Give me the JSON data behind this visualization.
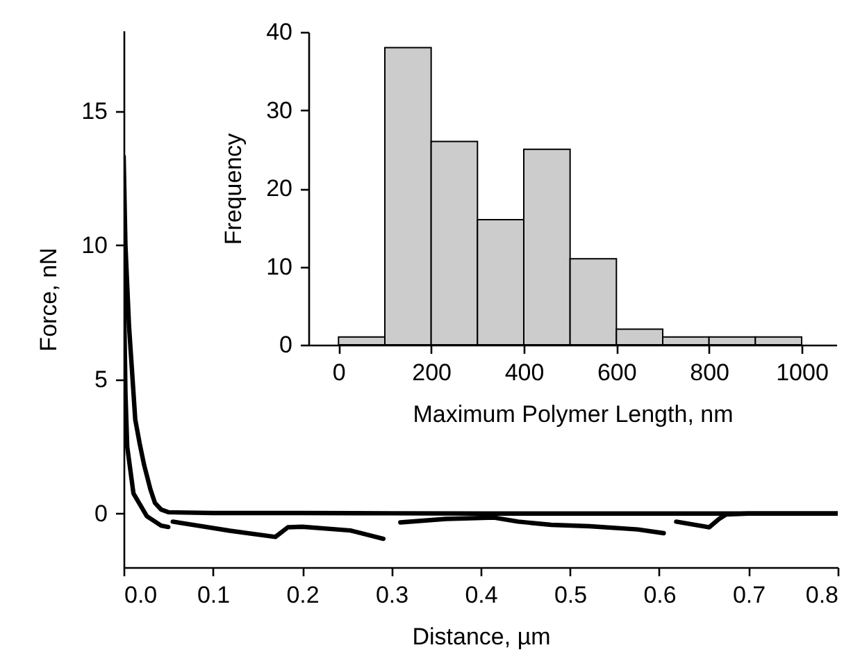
{
  "chart_data": [
    {
      "type": "line",
      "xlabel": "Distance, µm",
      "ylabel": "Force, nN",
      "xlim": [
        0,
        0.8
      ],
      "ylim": [
        -2,
        18
      ],
      "xticks": [
        {
          "value": 0,
          "label": "0.0"
        },
        0.1,
        0.2,
        0.3,
        0.4,
        0.5,
        0.6,
        0.7,
        0.8
      ],
      "yticks": [
        0,
        5,
        10,
        15
      ],
      "grid": false,
      "legend": false,
      "series": [
        {
          "color": "#000000",
          "x": [
            0,
            0.002,
            0.004,
            0.006,
            0.01,
            0.013,
            0.018,
            0.023,
            0.03,
            0.035,
            0.042,
            0.05,
            0.1,
            0.2,
            0.3,
            0.4,
            0.5,
            0.6,
            0.7,
            0.8
          ],
          "values": [
            13.3,
            10,
            8.5,
            7,
            5,
            3.5,
            2.6,
            1.8,
            0.9,
            0.4,
            0.15,
            0.05,
            0.02,
            0.02,
            0.01,
            0,
            0,
            0,
            0,
            0
          ]
        },
        {
          "color": "#000000",
          "x": [
            0,
            0.002,
            0.004,
            0.011,
            0.026,
            0.042,
            0.05,
            0.052,
            0.055,
            0.119,
            0.17,
            0.184,
            0.2,
            0.254,
            0.291,
            0.3,
            0.31,
            0.361,
            0.415,
            0.442,
            0.479,
            0.522,
            0.576,
            0.605,
            0.612,
            0.619,
            0.656,
            0.667,
            0.675,
            0.7,
            0.8
          ],
          "values": [
            9,
            4.5,
            2.5,
            0.75,
            -0.1,
            -0.45,
            -0.5,
            null,
            -0.3,
            -0.64,
            -0.87,
            -0.51,
            -0.49,
            -0.63,
            -0.94,
            null,
            -0.33,
            -0.2,
            -0.15,
            -0.3,
            -0.42,
            -0.47,
            -0.59,
            -0.73,
            null,
            -0.3,
            -0.51,
            -0.2,
            -0.03,
            0,
            0
          ]
        }
      ]
    },
    {
      "type": "histogram",
      "xlabel": "Maximum Polymer Length, nm",
      "ylabel": "Frequency",
      "xlim": [
        -65,
        1075
      ],
      "ylim": [
        0,
        40
      ],
      "xticks": [
        0,
        200,
        400,
        600,
        800,
        1000
      ],
      "yticks": [
        0,
        10,
        20,
        30,
        40
      ],
      "grid": false,
      "color": "#cccccc",
      "bins": [
        0,
        100,
        200,
        300,
        400,
        500,
        600,
        700,
        800,
        900,
        1000
      ],
      "values": [
        1,
        38,
        26,
        16,
        25,
        11,
        2,
        1,
        1,
        1
      ]
    }
  ]
}
